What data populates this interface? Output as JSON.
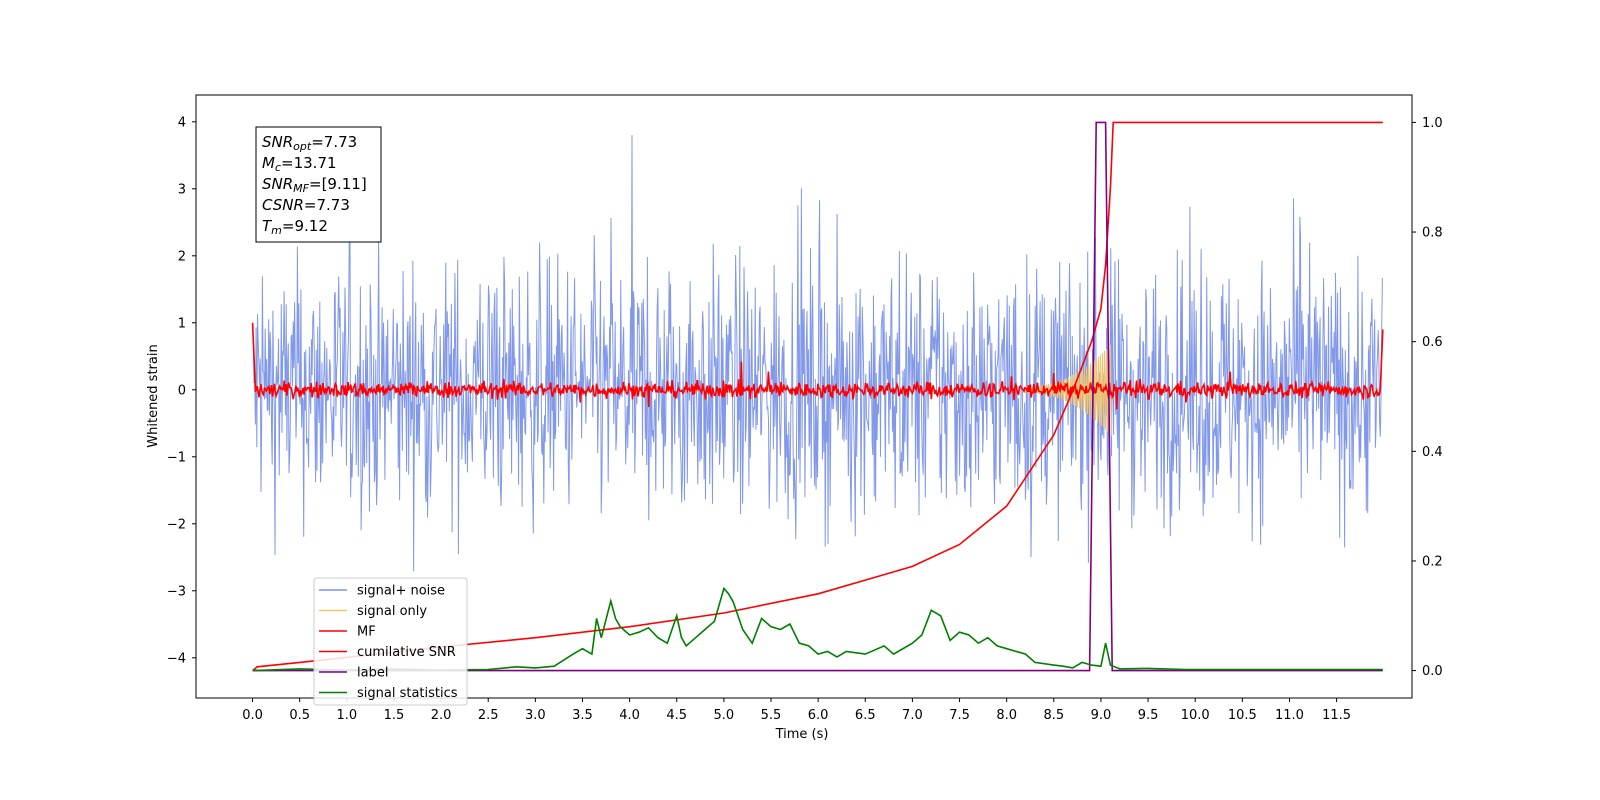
{
  "chart_data": {
    "type": "line",
    "xlabel": "Time (s)",
    "ylabel_left": "Whitened strain",
    "ylabel_right": "",
    "xlim": [
      -0.6,
      12.3
    ],
    "ylim_left": [
      -4.6,
      4.4
    ],
    "ylim_right": [
      -0.05,
      1.05
    ],
    "x_ticks": [
      "0.0",
      "0.5",
      "1.0",
      "1.5",
      "2.0",
      "2.5",
      "3.0",
      "3.5",
      "4.0",
      "4.5",
      "5.0",
      "5.5",
      "6.0",
      "6.5",
      "7.0",
      "7.5",
      "8.0",
      "8.5",
      "9.0",
      "9.5",
      "10.0",
      "10.5",
      "11.0",
      "11.5"
    ],
    "y_ticks_left": [
      "4",
      "3",
      "2",
      "1",
      "0",
      "−1",
      "−2",
      "−3",
      "−4"
    ],
    "y_ticks_right": [
      "1.0",
      "0.8",
      "0.6",
      "0.4",
      "0.2",
      "0.0"
    ],
    "info_box": [
      {
        "sym": "SNR",
        "sub": "opt",
        "val": "=7.73"
      },
      {
        "sym": "M",
        "sub": "c",
        "val": "=13.71"
      },
      {
        "sym": "SNR",
        "sub": "MF",
        "val": "=[9.11]"
      },
      {
        "sym": "CSNR",
        "sub": "",
        "val": "=7.73"
      },
      {
        "sym": "T",
        "sub": "m",
        "val": "=9.12"
      }
    ],
    "legend_position": "lower-left",
    "series": [
      {
        "name": "signal+ noise",
        "axis": "left",
        "color": "#7b94e8",
        "description": "noisy trace spanning roughly -2.8 to 3.0 with spikes up to about 4.0 and down to about -4.2"
      },
      {
        "name": "signal only",
        "axis": "left",
        "color": "#f2c46d",
        "description": "chirp growing from 8.3 s to 9.1 s reaching about ±0.7, zero elsewhere"
      },
      {
        "name": "MF",
        "axis": "left",
        "color": "#ff0000",
        "description": "matched-filter output noise around 0 (about ±0.2), endpoints near 1.0 and 0.9"
      },
      {
        "name": "cumilative SNR",
        "axis": "right",
        "color": "#ff0000",
        "x": [
          0.0,
          0.05,
          0.5,
          1.0,
          2.0,
          3.0,
          4.0,
          5.0,
          6.0,
          7.0,
          7.5,
          8.0,
          8.5,
          8.7,
          8.9,
          9.0,
          9.05,
          9.1,
          9.13,
          11.99
        ],
        "y": [
          0.0,
          0.007,
          0.015,
          0.024,
          0.043,
          0.06,
          0.08,
          0.105,
          0.14,
          0.19,
          0.23,
          0.3,
          0.43,
          0.51,
          0.6,
          0.66,
          0.74,
          0.88,
          1.0,
          1.0
        ]
      },
      {
        "name": "label",
        "axis": "right",
        "color": "#800080",
        "x": [
          0.0,
          8.88,
          8.95,
          9.05,
          9.12,
          11.99
        ],
        "y": [
          0.0,
          0.0,
          1.0,
          1.0,
          0.0,
          0.0
        ]
      },
      {
        "name": "signal statistics",
        "axis": "right",
        "color": "#008000",
        "x": [
          0.0,
          0.5,
          1.0,
          1.5,
          2.0,
          2.5,
          2.8,
          3.0,
          3.2,
          3.4,
          3.5,
          3.6,
          3.65,
          3.7,
          3.8,
          3.85,
          3.9,
          4.0,
          4.1,
          4.2,
          4.3,
          4.4,
          4.5,
          4.55,
          4.6,
          4.7,
          4.8,
          4.9,
          5.0,
          5.05,
          5.1,
          5.2,
          5.3,
          5.4,
          5.5,
          5.6,
          5.7,
          5.8,
          5.9,
          6.0,
          6.1,
          6.2,
          6.3,
          6.5,
          6.7,
          6.8,
          7.0,
          7.1,
          7.2,
          7.3,
          7.4,
          7.5,
          7.6,
          7.7,
          7.8,
          7.9,
          8.0,
          8.2,
          8.3,
          8.5,
          8.6,
          8.7,
          8.8,
          8.9,
          9.0,
          9.05,
          9.1,
          9.2,
          9.5,
          9.9,
          11.99
        ],
        "y": [
          0.0,
          0.003,
          0.001,
          0.003,
          0.001,
          0.002,
          0.007,
          0.005,
          0.008,
          0.03,
          0.04,
          0.03,
          0.095,
          0.06,
          0.127,
          0.095,
          0.08,
          0.065,
          0.07,
          0.078,
          0.06,
          0.05,
          0.1,
          0.06,
          0.045,
          0.06,
          0.075,
          0.09,
          0.15,
          0.14,
          0.125,
          0.075,
          0.05,
          0.095,
          0.08,
          0.075,
          0.085,
          0.05,
          0.045,
          0.03,
          0.035,
          0.025,
          0.035,
          0.03,
          0.045,
          0.03,
          0.05,
          0.065,
          0.11,
          0.1,
          0.055,
          0.07,
          0.065,
          0.05,
          0.06,
          0.045,
          0.04,
          0.03,
          0.015,
          0.01,
          0.008,
          0.005,
          0.015,
          0.01,
          0.008,
          0.05,
          0.01,
          0.003,
          0.004,
          0.002,
          0.002
        ]
      }
    ]
  }
}
